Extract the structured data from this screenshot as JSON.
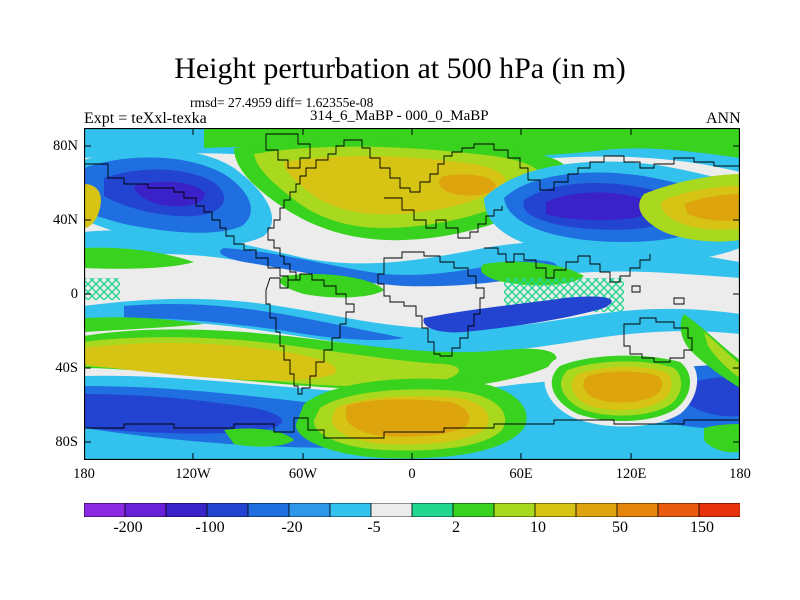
{
  "title": "Height perturbation at 500 hPa (in m)",
  "stats": "rmsd= 27.4959 diff= 1.62355e-08",
  "experiment": "Expt = teXxl-texka",
  "period": "314_6_MaBP - 000_0_MaBP",
  "season": "ANN",
  "lat_labels": [
    "80N",
    "40N",
    "0",
    "40S",
    "80S"
  ],
  "lon_labels": [
    "180",
    "120W",
    "60W",
    "0",
    "60E",
    "120E",
    "180"
  ],
  "colorbar": {
    "colors": [
      "#8a2be2",
      "#6a1fd8",
      "#3a22c8",
      "#2244d0",
      "#1f6fe0",
      "#2f97e8",
      "#33c2ee",
      "#ececec",
      "#22d890",
      "#39d21e",
      "#a8d91e",
      "#d6c313",
      "#dea40e",
      "#e5850b",
      "#ea5a10",
      "#e8320c"
    ],
    "labels": [
      "-200",
      "-100",
      "-20",
      "-5",
      "2",
      "10",
      "50",
      "150"
    ]
  }
}
